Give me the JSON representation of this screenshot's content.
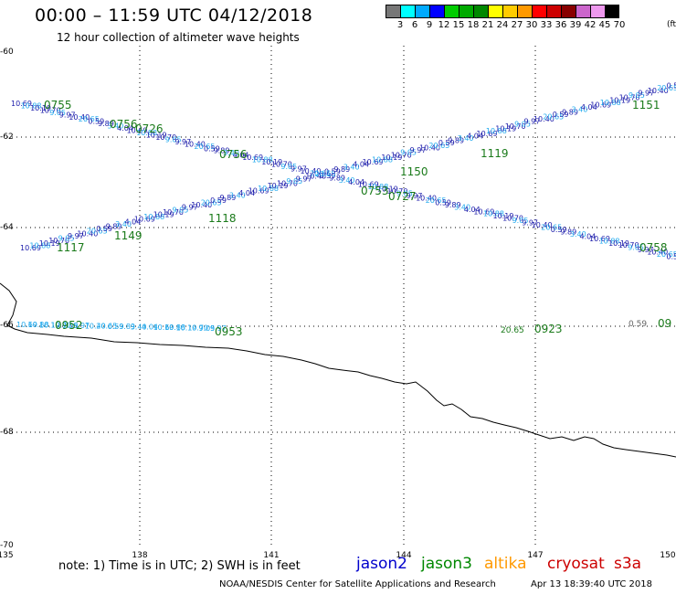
{
  "header": {
    "title": "00:00 – 11:59 UTC 04/12/2018",
    "subtitle": "12 hour collection of altimeter wave heights"
  },
  "colorbar": {
    "colors": [
      "#777777",
      "#00ffff",
      "#00aaff",
      "#0000ff",
      "#00cc00",
      "#00aa00",
      "#008800",
      "#ffff00",
      "#ffcc00",
      "#ff9900",
      "#ff0000",
      "#cc0000",
      "#880000",
      "#cc66cc",
      "#ee99ee",
      "#000000"
    ],
    "labels": [
      "3",
      "6",
      "9",
      "12",
      "15",
      "18",
      "21",
      "24",
      "27",
      "30",
      "33",
      "36",
      "39",
      "42",
      "45",
      "70"
    ],
    "unit": "(ft)"
  },
  "axes": {
    "lat_labels": [
      "-60",
      "-62",
      "-64",
      "-66",
      "-68",
      "-70"
    ],
    "lon_labels": [
      "135",
      "138",
      "141",
      "144",
      "147",
      "150"
    ]
  },
  "track_labels": {
    "nw_times": [
      "0755",
      "0756",
      "0726",
      "0756"
    ],
    "se_times": [
      "0753",
      "0727",
      "0758"
    ],
    "sw_times": [
      "1117",
      "1149",
      "1118"
    ],
    "ne_times": [
      "1150",
      "1119",
      "1151"
    ],
    "coastal_times": [
      "0952",
      "0953",
      "0923",
      "09"
    ],
    "swh_values": [
      "10.69",
      "10.88",
      "10.19",
      "10.70",
      "9.05",
      "9.97",
      "10.40",
      "20.65",
      "0.59",
      "9.89",
      "3.40",
      "4.04"
    ]
  },
  "footer": {
    "note": "note:  1) Time is in UTC;  2) SWH is in feet",
    "legend": [
      {
        "name": "jason2",
        "color": "#0000cc"
      },
      {
        "name": "jason3",
        "color": "#008800"
      },
      {
        "name": "altika",
        "color": "#ff9900"
      },
      {
        "name": "cryosat",
        "color": "#cc0000"
      },
      {
        "name": "s3a",
        "color": "#cc0000"
      }
    ],
    "credit": "NOAA/NESDIS Center for Satellite Applications and Research",
    "timestamp": "Apr 13 18:39:40 UTC 2018"
  }
}
